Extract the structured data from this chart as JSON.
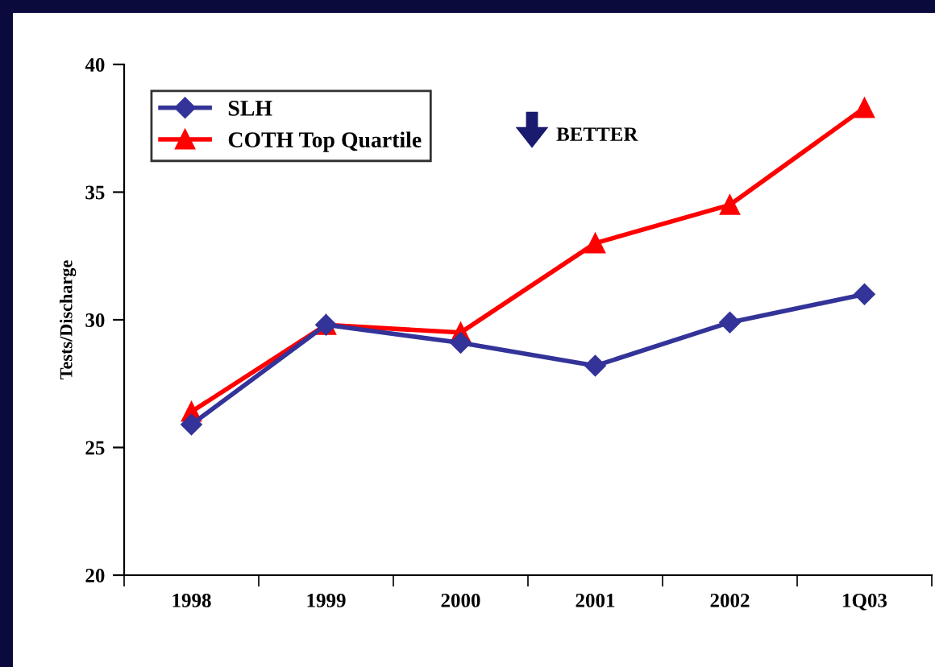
{
  "chart_data": {
    "type": "line",
    "ylabel": "Tests/Discharge",
    "categories": [
      "1998",
      "1999",
      "2000",
      "2001",
      "2002",
      "1Q03"
    ],
    "series": [
      {
        "name": "SLH",
        "color": "#333399",
        "values": [
          25.9,
          29.8,
          29.1,
          28.2,
          29.9,
          31.0
        ],
        "marker": "diamond"
      },
      {
        "name": "COTH Top Quartile",
        "color": "#ff0000",
        "values": [
          26.4,
          29.8,
          29.5,
          33.0,
          34.5,
          38.3
        ],
        "marker": "triangle"
      }
    ],
    "ylim": [
      20,
      40
    ],
    "yticks": [
      20,
      25,
      30,
      35,
      40
    ],
    "grid": false,
    "legend": "top left",
    "annotations": [
      "BETTER"
    ]
  }
}
